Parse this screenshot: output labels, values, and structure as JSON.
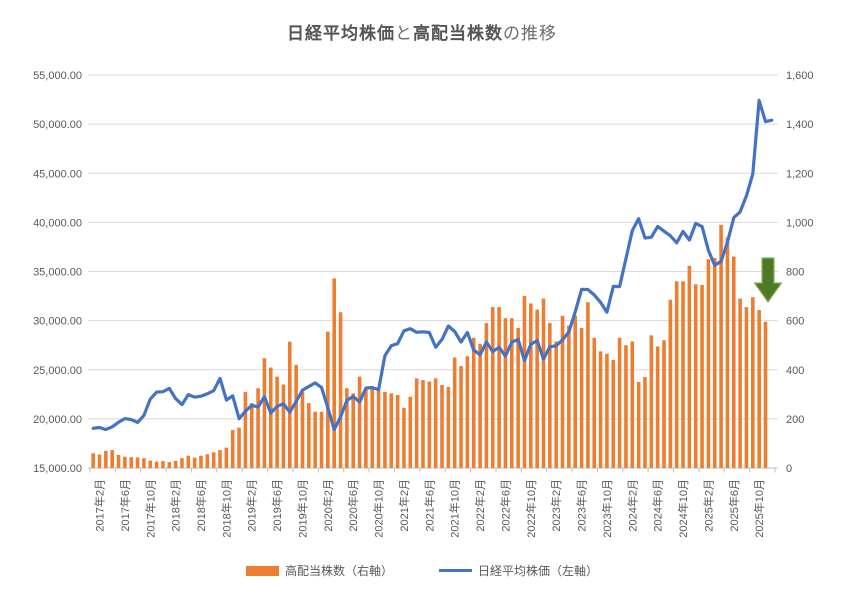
{
  "title": {
    "full": "日経平均株価と高配当株数の推移",
    "part1": "日経平均株価",
    "part2": "と",
    "part3": "高配当株数",
    "part4": "の推移"
  },
  "legend": [
    {
      "label": "高配当株数（右軸）",
      "color": "#ED7D31",
      "type": "bar"
    },
    {
      "label": "日経平均株価（左軸）",
      "color": "#4472C4",
      "type": "line"
    }
  ],
  "colors": {
    "bar": "#ED7D31",
    "line": "#4472C4",
    "gridline": "#D9D9D9",
    "axis": "#BFBFBF",
    "axis_text": "#595959",
    "arrow_fill": "#4E7A28",
    "arrow_edge": "#8CAF5D"
  },
  "chart_data": {
    "type": "combo",
    "title": "日経平均株価と高配当株数の推移",
    "categories": [
      "2017年1月",
      "2017年2月",
      "2017年3月",
      "2017年4月",
      "2017年5月",
      "2017年6月",
      "2017年7月",
      "2017年8月",
      "2017年9月",
      "2017年10月",
      "2017年11月",
      "2017年12月",
      "2018年1月",
      "2018年2月",
      "2018年3月",
      "2018年4月",
      "2018年5月",
      "2018年6月",
      "2018年7月",
      "2018年8月",
      "2018年9月",
      "2018年10月",
      "2018年11月",
      "2018年12月",
      "2019年1月",
      "2019年2月",
      "2019年3月",
      "2019年4月",
      "2019年5月",
      "2019年6月",
      "2019年7月",
      "2019年8月",
      "2019年9月",
      "2019年10月",
      "2019年11月",
      "2019年12月",
      "2020年1月",
      "2020年2月",
      "2020年3月",
      "2020年4月",
      "2020年5月",
      "2020年6月",
      "2020年7月",
      "2020年8月",
      "2020年9月",
      "2020年10月",
      "2020年11月",
      "2020年12月",
      "2021年1月",
      "2021年2月",
      "2021年3月",
      "2021年4月",
      "2021年5月",
      "2021年6月",
      "2021年7月",
      "2021年8月",
      "2021年9月",
      "2021年10月",
      "2021年11月",
      "2021年12月",
      "2022年1月",
      "2022年2月",
      "2022年3月",
      "2022年4月",
      "2022年5月",
      "2022年6月",
      "2022年7月",
      "2022年8月",
      "2022年9月",
      "2022年10月",
      "2022年11月",
      "2022年12月",
      "2023年1月",
      "2023年2月",
      "2023年3月",
      "2023年4月",
      "2023年5月",
      "2023年6月",
      "2023年7月",
      "2023年8月",
      "2023年9月",
      "2023年10月",
      "2023年11月",
      "2023年12月",
      "2024年1月",
      "2024年2月",
      "2024年3月",
      "2024年4月",
      "2024年5月",
      "2024年6月",
      "2024年7月",
      "2024年8月",
      "2024年9月",
      "2024年10月",
      "2024年11月",
      "2024年12月",
      "2025年1月",
      "2025年2月",
      "2025年3月",
      "2025年4月",
      "2025年5月",
      "2025年6月",
      "2025年7月",
      "2025年8月",
      "2025年9月",
      "2025年10月",
      "2025年11月",
      "2025年12月"
    ],
    "series": [
      {
        "name": "高配当株数（右軸）",
        "type": "bar",
        "axis": "right",
        "color": "#ED7D31",
        "values": [
          60,
          55,
          70,
          73,
          53,
          46,
          44,
          43,
          40,
          30,
          26,
          28,
          24,
          29,
          40,
          50,
          42,
          50,
          56,
          64,
          73,
          83,
          155,
          164,
          310,
          264,
          325,
          447,
          409,
          372,
          340,
          514,
          420,
          311,
          264,
          229,
          229,
          555,
          772,
          634,
          325,
          304,
          372,
          325,
          330,
          318,
          310,
          304,
          297,
          245,
          290,
          365,
          358,
          352,
          365,
          338,
          330,
          450,
          415,
          455,
          530,
          505,
          590,
          655,
          655,
          610,
          610,
          570,
          700,
          670,
          645,
          690,
          590,
          515,
          620,
          580,
          620,
          570,
          675,
          530,
          475,
          465,
          440,
          530,
          500,
          515,
          350,
          370,
          540,
          495,
          520,
          685,
          760,
          760,
          823,
          748,
          745,
          850,
          855,
          990,
          938,
          861,
          690,
          655,
          695,
          643,
          595,
          null
        ]
      },
      {
        "name": "日経平均株価（左軸）",
        "type": "line",
        "axis": "left",
        "color": "#4472C4",
        "values": [
          19041,
          19119,
          18909,
          19197,
          19651,
          20033,
          19925,
          19646,
          20356,
          22012,
          22725,
          22765,
          23098,
          22068,
          21454,
          22468,
          22202,
          22305,
          22554,
          22865,
          24120,
          21920,
          22351,
          20015,
          20773,
          21385,
          21206,
          22259,
          20601,
          21276,
          21522,
          20704,
          21756,
          22927,
          23294,
          23657,
          23205,
          21143,
          18917,
          20194,
          21878,
          22288,
          21710,
          23140,
          23185,
          22977,
          26434,
          27444,
          27663,
          28966,
          29179,
          28813,
          28860,
          28792,
          27284,
          28090,
          29453,
          28893,
          27822,
          28792,
          27002,
          26527,
          27821,
          26848,
          27280,
          26393,
          27802,
          28092,
          25937,
          27587,
          27969,
          26095,
          27327,
          27446,
          28041,
          28856,
          30888,
          33189,
          33172,
          32619,
          31858,
          30859,
          33487,
          33464,
          36287,
          39166,
          40369,
          38406,
          38488,
          39583,
          39102,
          38648,
          37920,
          39081,
          38208,
          39895,
          39572,
          37156,
          35618,
          36045,
          37965,
          40487,
          41070,
          42718,
          44932,
          52411,
          50253,
          50400
        ]
      }
    ],
    "left_axis": {
      "min": 15000,
      "max": 55000,
      "step": 5000,
      "labels": [
        "55,000.00",
        "50,000.00",
        "45,000.00",
        "40,000.00",
        "35,000.00",
        "30,000.00",
        "25,000.00",
        "20,000.00",
        "15,000.00"
      ]
    },
    "right_axis": {
      "min": 0,
      "max": 1600,
      "step": 200,
      "labels": [
        "1,600",
        "1,400",
        "1,200",
        "1,000",
        "800",
        "600",
        "400",
        "200",
        "0"
      ]
    },
    "x_axis": {
      "first_label_index": 1,
      "label_interval": 4
    },
    "grid": true,
    "legend_position": "bottom",
    "annotation": {
      "shape": "down-arrow",
      "color": "#4E7A28",
      "near_category": "2025年11月"
    }
  }
}
